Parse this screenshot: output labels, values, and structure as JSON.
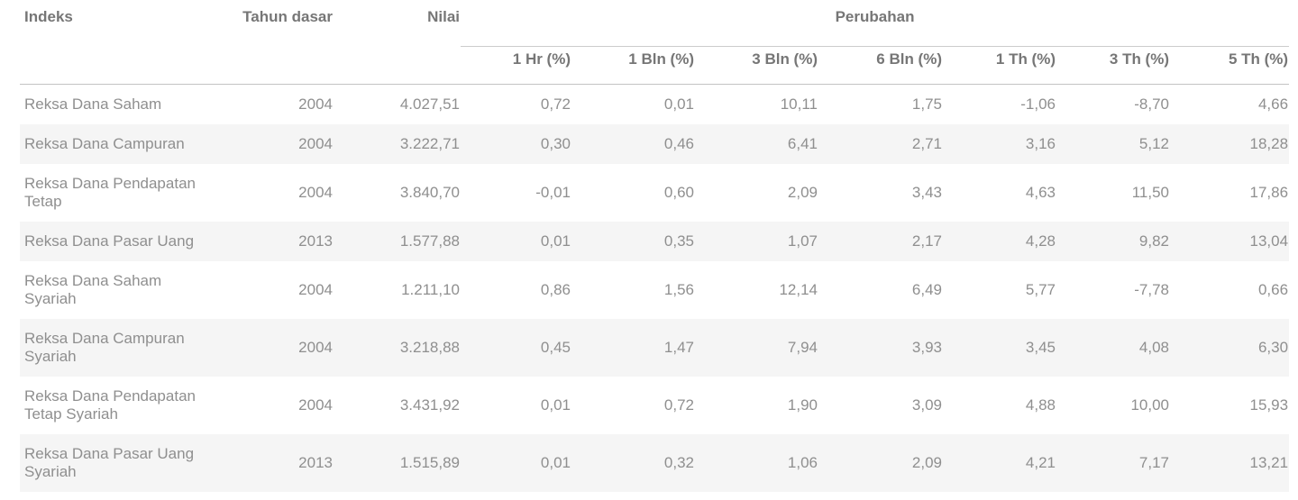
{
  "table": {
    "main_columns": [
      "Indeks",
      "Tahun dasar",
      "Nilai"
    ],
    "group_header": "Perubahan",
    "period_columns": [
      "1 Hr (%)",
      "1 Bln (%)",
      "3 Bln (%)",
      "6 Bln (%)",
      "1 Th (%)",
      "3 Th (%)",
      "5 Th (%)"
    ],
    "rows": [
      {
        "indeks": "Reksa Dana Saham",
        "tahun_dasar": "2004",
        "nilai": "4.027,51",
        "perubahan": [
          "0,72",
          "0,01",
          "10,11",
          "1,75",
          "-1,06",
          "-8,70",
          "4,66"
        ]
      },
      {
        "indeks": "Reksa Dana Campuran",
        "tahun_dasar": "2004",
        "nilai": "3.222,71",
        "perubahan": [
          "0,30",
          "0,46",
          "6,41",
          "2,71",
          "3,16",
          "5,12",
          "18,28"
        ]
      },
      {
        "indeks": "Reksa Dana Pendapatan Tetap",
        "tahun_dasar": "2004",
        "nilai": "3.840,70",
        "perubahan": [
          "-0,01",
          "0,60",
          "2,09",
          "3,43",
          "4,63",
          "11,50",
          "17,86"
        ]
      },
      {
        "indeks": "Reksa Dana Pasar Uang",
        "tahun_dasar": "2013",
        "nilai": "1.577,88",
        "perubahan": [
          "0,01",
          "0,35",
          "1,07",
          "2,17",
          "4,28",
          "9,82",
          "13,04"
        ]
      },
      {
        "indeks": "Reksa Dana Saham Syariah",
        "tahun_dasar": "2004",
        "nilai": "1.211,10",
        "perubahan": [
          "0,86",
          "1,56",
          "12,14",
          "6,49",
          "5,77",
          "-7,78",
          "0,66"
        ]
      },
      {
        "indeks": "Reksa Dana Campuran Syariah",
        "tahun_dasar": "2004",
        "nilai": "3.218,88",
        "perubahan": [
          "0,45",
          "1,47",
          "7,94",
          "3,93",
          "3,45",
          "4,08",
          "6,30"
        ]
      },
      {
        "indeks": "Reksa Dana Pendapatan Tetap Syariah",
        "tahun_dasar": "2004",
        "nilai": "3.431,92",
        "perubahan": [
          "0,01",
          "0,72",
          "1,90",
          "3,09",
          "4,88",
          "10,00",
          "15,93"
        ]
      },
      {
        "indeks": "Reksa Dana Pasar Uang Syariah",
        "tahun_dasar": "2013",
        "nilai": "1.515,89",
        "perubahan": [
          "0,01",
          "0,32",
          "1,06",
          "2,09",
          "4,21",
          "7,17",
          "13,21"
        ]
      }
    ]
  },
  "colors": {
    "header_text": "#767676",
    "body_text": "#8f8f8f",
    "row_stripe": "#f5f5f5",
    "divider": "#c3c3c3",
    "group_divider": "#cccccc",
    "background": "#ffffff"
  }
}
